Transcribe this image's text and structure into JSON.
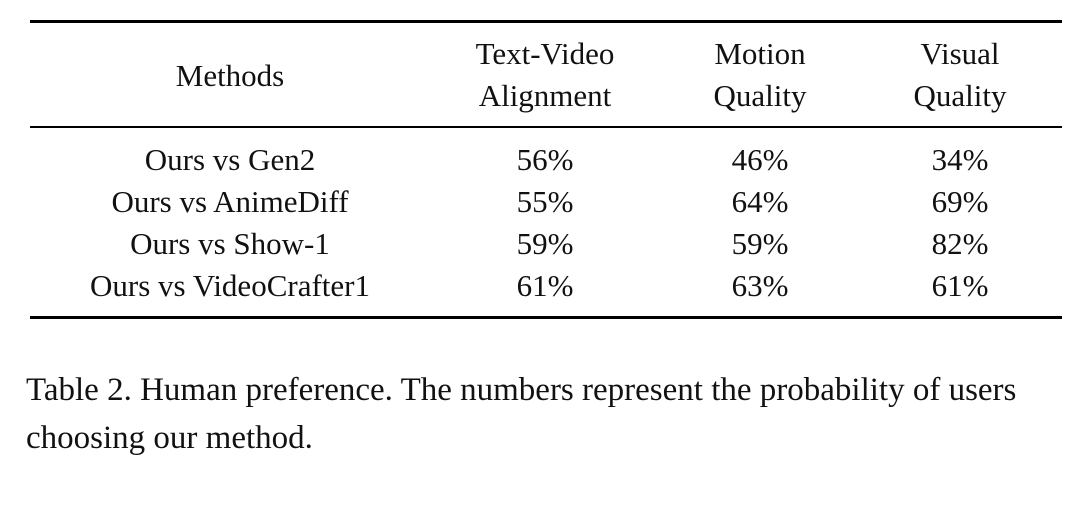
{
  "table": {
    "headers": {
      "methods": "Methods",
      "text_video_line1": "Text-Video",
      "text_video_line2": "Alignment",
      "motion_line1": "Motion",
      "motion_line2": "Quality",
      "visual_line1": "Visual",
      "visual_line2": "Quality"
    },
    "rows": [
      {
        "method": "Ours vs Gen2",
        "alignment": "56%",
        "motion": "46%",
        "visual": "34%"
      },
      {
        "method": "Ours vs AnimeDiff",
        "alignment": "55%",
        "motion": "64%",
        "visual": "69%"
      },
      {
        "method": "Ours vs Show-1",
        "alignment": "59%",
        "motion": "59%",
        "visual": "82%"
      },
      {
        "method": "Ours vs VideoCrafter1",
        "alignment": "61%",
        "motion": "63%",
        "visual": "61%"
      }
    ]
  },
  "caption": {
    "text": "Table 2. Human preference. The numbers represent the probability of users choosing our method."
  }
}
